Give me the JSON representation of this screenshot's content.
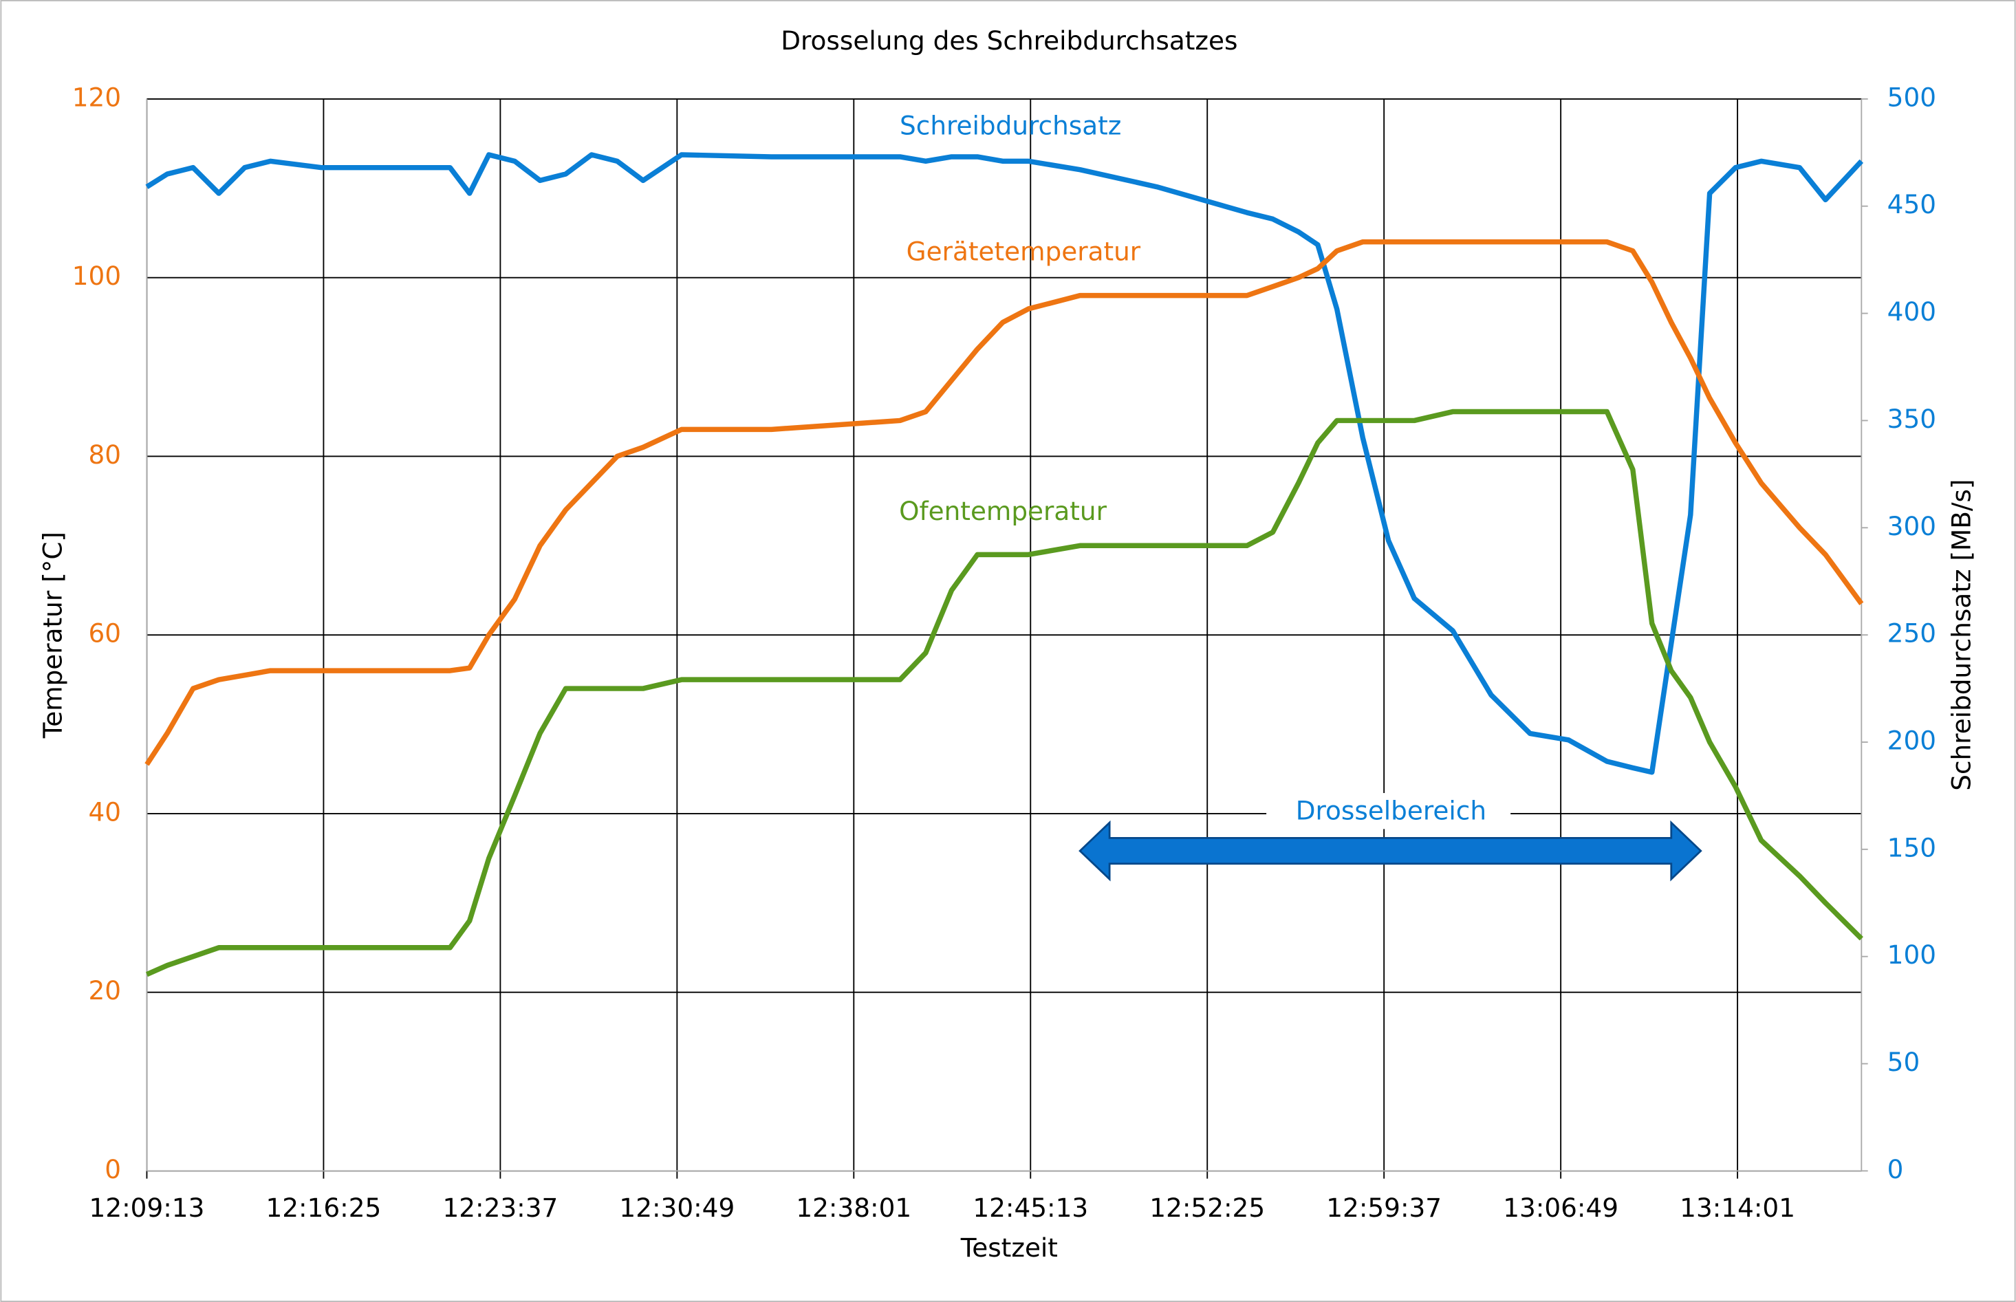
{
  "chart_data": {
    "type": "line",
    "title": "Drosselung des Schreibdurchsatzes",
    "x_label": "Testzeit",
    "y_label": "Temperatur [°C]",
    "y2_label": "Schreibdurchsatz [MB/s]",
    "annotation": "Drosselbereich",
    "grid": true,
    "xlim": [
      "12:09:13",
      "13:19:04"
    ],
    "xticks": [
      "12:09:13",
      "12:16:25",
      "12:23:37",
      "12:30:49",
      "12:38:01",
      "12:45:13",
      "12:52:25",
      "12:59:37",
      "13:06:49",
      "13:14:01"
    ],
    "ylim": [
      0,
      120
    ],
    "yticks": [
      0,
      20,
      40,
      60,
      80,
      100,
      120
    ],
    "y2lim": [
      0,
      500
    ],
    "y2ticks": [
      0,
      50,
      100,
      150,
      200,
      250,
      300,
      350,
      400,
      450,
      500
    ],
    "x": [
      "12:09:13",
      "12:10:03",
      "12:11:06",
      "12:12:09",
      "12:13:12",
      "12:14:15",
      "12:16:20",
      "12:18:57",
      "12:21:34",
      "12:22:22",
      "12:23:09",
      "12:24:12",
      "12:25:14",
      "12:26:17",
      "12:27:20",
      "12:28:23",
      "12:29:26",
      "12:31:00",
      "12:34:40",
      "12:39:54",
      "12:40:57",
      "12:42:00",
      "12:43:03",
      "12:44:05",
      "12:45:08",
      "12:47:14",
      "12:50:22",
      "12:54:02",
      "12:55:05",
      "12:56:08",
      "12:56:55",
      "12:57:42",
      "12:58:45",
      "12:59:48",
      "13:00:51",
      "13:02:25",
      "13:03:59",
      "13:05:34",
      "13:07:08",
      "13:08:42",
      "13:09:45",
      "13:10:32",
      "13:11:19",
      "13:12:06",
      "13:12:53",
      "13:13:56",
      "13:14:59",
      "13:16:33",
      "13:17:36",
      "13:19:04"
    ],
    "series": [
      {
        "name": "Schreibdurchsatz",
        "color": "#0a7fd6",
        "axis": "y2",
        "values": [
          459,
          465,
          468,
          456,
          468,
          471,
          468,
          468,
          468,
          456,
          474,
          471,
          462,
          465,
          474,
          471,
          462,
          474,
          473,
          473,
          471,
          473,
          473,
          471,
          471,
          467,
          459,
          447,
          444,
          438,
          432,
          402,
          342,
          294,
          267,
          252,
          222,
          204,
          201,
          191,
          188,
          186,
          246,
          306,
          456,
          468,
          471,
          468,
          453,
          471
        ]
      },
      {
        "name": "Gerätetemperatur",
        "color": "#ee7512",
        "values": [
          45.5,
          49,
          54,
          55,
          55.5,
          56,
          56,
          56,
          56,
          56.3,
          60,
          64,
          70,
          74,
          77,
          80,
          81,
          83,
          83,
          84,
          85,
          88.5,
          92,
          95,
          96.5,
          98,
          98,
          98,
          99,
          100,
          101,
          103,
          104,
          104,
          104,
          104,
          104,
          104,
          104,
          104,
          103,
          99.5,
          95,
          91,
          86.5,
          81.5,
          77,
          72,
          69,
          63.5
        ]
      },
      {
        "name": "Ofentemperatur",
        "color": "#5a9a1f",
        "values": [
          22,
          23,
          24,
          25,
          25,
          25,
          25,
          25,
          25,
          28,
          35,
          42,
          49,
          54,
          54,
          54,
          54,
          55,
          55,
          55,
          58,
          65,
          69,
          69,
          69,
          70,
          70,
          70,
          71.5,
          77,
          81.5,
          84,
          84,
          84,
          84,
          85,
          85,
          85,
          85,
          85,
          78.5,
          61.3,
          56,
          53,
          48,
          43,
          37,
          33,
          30,
          26
        ]
      }
    ]
  }
}
